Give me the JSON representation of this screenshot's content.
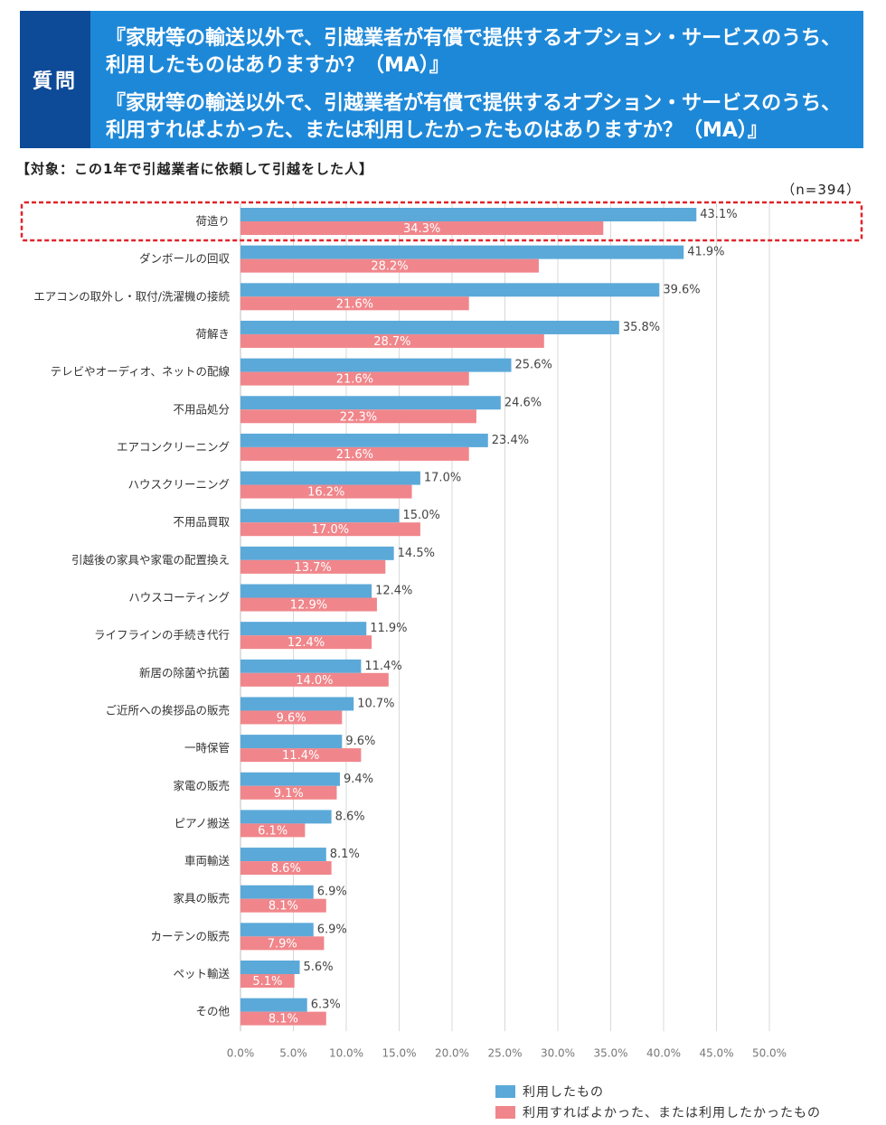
{
  "header": {
    "label": "質問",
    "q1_line1": "『家財等の輸送以外で、引越業者が有償で提供するオプション・サービスのうち、",
    "q1_line2": "利用したものはありますか？（MA）』",
    "q2_line1": "『家財等の輸送以外で、引越業者が有償で提供するオプション・サービスのうち、",
    "q2_line2": "利用すればよかった、または利用したかったものはありますか？（MA）』"
  },
  "target": "【対象：この1年で引越業者に依頼して引越をした人】",
  "sample": "（n=394）",
  "colors": {
    "series1": "#5ba9d9",
    "series2": "#f0868b",
    "highlight": "#e0242a",
    "grid": "#d9d9d9"
  },
  "chart_data": {
    "type": "bar",
    "orientation": "horizontal",
    "categories": [
      "荷造り",
      "ダンボールの回収",
      "エアコンの取外し・取付/洗濯機の接続",
      "荷解き",
      "テレビやオーディオ、ネットの配線",
      "不用品処分",
      "エアコンクリーニング",
      "ハウスクリーニング",
      "不用品買取",
      "引越後の家具や家電の配置換え",
      "ハウスコーティング",
      "ライフラインの手続き代行",
      "新居の除菌や抗菌",
      "ご近所への挨拶品の販売",
      "一時保管",
      "家電の販売",
      "ピアノ搬送",
      "車両輸送",
      "家具の販売",
      "カーテンの販売",
      "ペット輸送",
      "その他"
    ],
    "series": [
      {
        "name": "利用したもの",
        "values": [
          43.1,
          41.9,
          39.6,
          35.8,
          25.6,
          24.6,
          23.4,
          17.0,
          15.0,
          14.5,
          12.4,
          11.9,
          11.4,
          10.7,
          9.6,
          9.4,
          8.6,
          8.1,
          6.9,
          6.9,
          5.6,
          6.3
        ]
      },
      {
        "name": "利用すればよかった、または利用したかったもの",
        "values": [
          34.3,
          28.2,
          21.6,
          28.7,
          21.6,
          22.3,
          21.6,
          16.2,
          17.0,
          13.7,
          12.9,
          12.4,
          14.0,
          9.6,
          11.4,
          9.1,
          6.1,
          8.6,
          8.1,
          7.9,
          5.1,
          8.1
        ]
      }
    ],
    "xlim": [
      0,
      50
    ],
    "ticks": [
      "0.0%",
      "5.0%",
      "10.0%",
      "15.0%",
      "20.0%",
      "25.0%",
      "30.0%",
      "35.0%",
      "40.0%",
      "45.0%",
      "50.0%"
    ],
    "highlighted_category": "荷造り",
    "legend_position": "bottom-right"
  }
}
